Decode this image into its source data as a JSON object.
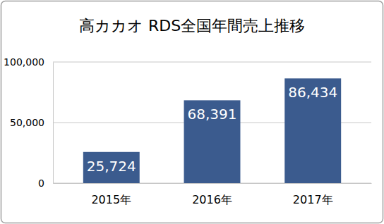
{
  "chart_data": {
    "type": "bar",
    "title": "高カカオ RDS全国年間売上推移",
    "categories": [
      "2015年",
      "2016年",
      "2017年"
    ],
    "values": [
      25724,
      68391,
      86434
    ],
    "value_labels": [
      "25,724",
      "68,391",
      "86,434"
    ],
    "color": "#3b5b8e",
    "ylim": [
      0,
      100000
    ],
    "yticks": [
      0,
      {
        "value": 50000,
        "label": "50,000"
      },
      {
        "value": 100000,
        "label": "100,000"
      }
    ],
    "grid": true,
    "data_labels": true
  }
}
